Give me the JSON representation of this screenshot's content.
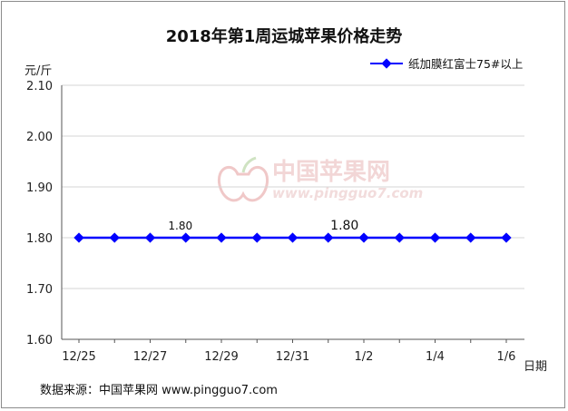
{
  "chart_data": {
    "type": "line",
    "title": "2018年第1周运城苹果价格走势",
    "ylabel": "元/斤",
    "xlabel": "日期",
    "ylim": [
      1.6,
      2.1
    ],
    "yticks": [
      "1.60",
      "1.70",
      "1.80",
      "1.90",
      "2.00",
      "2.10"
    ],
    "categories": [
      "12/25",
      "12/26",
      "12/27",
      "12/28",
      "12/29",
      "12/30",
      "12/31",
      "1/1",
      "1/2",
      "1/3",
      "1/4",
      "1/5",
      "1/6"
    ],
    "xtick_labels_shown": [
      "12/25",
      "",
      "12/27",
      "",
      "12/29",
      "",
      "12/31",
      "",
      "1/2",
      "",
      "1/4",
      "",
      "1/6"
    ],
    "series": [
      {
        "name": "纸加膜红富士75#以上",
        "color": "#0000ff",
        "values": [
          1.8,
          1.8,
          1.8,
          1.8,
          1.8,
          1.8,
          1.8,
          1.8,
          1.8,
          1.8,
          1.8,
          1.8,
          1.8
        ]
      }
    ],
    "annotations": [
      {
        "index": 3,
        "text": "1.80"
      },
      {
        "index": 7,
        "text": "1.80"
      }
    ],
    "grid": true,
    "legend_position": "top-right"
  },
  "watermark": {
    "cn": "中国苹果网",
    "url": "www.pingguo7.com"
  },
  "source": "数据来源：中国苹果网 www.pingguo7.com"
}
